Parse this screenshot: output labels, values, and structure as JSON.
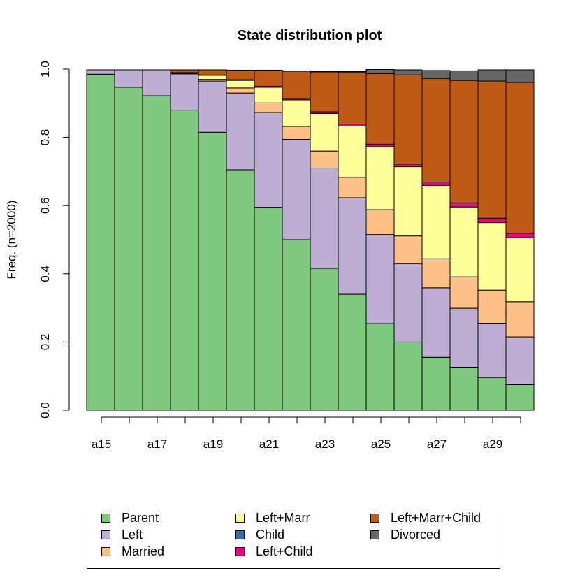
{
  "chart_data": {
    "type": "bar",
    "stacked": true,
    "title": "State distribution plot",
    "xlabel": "",
    "ylabel": "Freq. (n=2000)",
    "ylim": [
      0,
      1
    ],
    "yticks": [
      0.0,
      0.2,
      0.4,
      0.6,
      0.8,
      1.0
    ],
    "ytick_labels": [
      "0.0",
      "0.2",
      "0.4",
      "0.6",
      "0.8",
      "1.0"
    ],
    "categories": [
      "a15",
      "a16",
      "a17",
      "a18",
      "a19",
      "a20",
      "a21",
      "a22",
      "a23",
      "a24",
      "a25",
      "a26",
      "a27",
      "a28",
      "a29",
      "a30"
    ],
    "xtick_labels": [
      "a15",
      "",
      "a17",
      "",
      "a19",
      "",
      "a21",
      "",
      "a23",
      "",
      "a25",
      "",
      "a27",
      "",
      "a29",
      ""
    ],
    "legend_position": "bottom",
    "legend_columns": 3,
    "series": [
      {
        "name": "Parent",
        "color": "#7fc97f",
        "values": [
          0.985,
          0.947,
          0.922,
          0.88,
          0.815,
          0.705,
          0.595,
          0.5,
          0.416,
          0.34,
          0.254,
          0.2,
          0.155,
          0.126,
          0.096,
          0.075
        ]
      },
      {
        "name": "Left",
        "color": "#beaed4",
        "values": [
          0.013,
          0.051,
          0.076,
          0.106,
          0.15,
          0.225,
          0.278,
          0.294,
          0.294,
          0.283,
          0.261,
          0.23,
          0.204,
          0.173,
          0.159,
          0.14
        ]
      },
      {
        "name": "Married",
        "color": "#fdc086",
        "values": [
          0.0,
          0.0,
          0.0,
          0.0,
          0.005,
          0.015,
          0.028,
          0.038,
          0.05,
          0.06,
          0.073,
          0.081,
          0.085,
          0.092,
          0.097,
          0.103
        ]
      },
      {
        "name": "Left+Marr",
        "color": "#ffff99",
        "values": [
          0.0,
          0.0,
          0.0,
          0.002,
          0.012,
          0.022,
          0.046,
          0.078,
          0.11,
          0.15,
          0.185,
          0.203,
          0.215,
          0.205,
          0.198,
          0.188
        ]
      },
      {
        "name": "Child",
        "color": "#386cb0",
        "values": [
          0.0,
          0.0,
          0.0,
          0.0,
          0.0,
          0.0,
          0.0,
          0.0,
          0.0,
          0.0,
          0.0,
          0.0,
          0.0,
          0.0,
          0.0,
          0.0
        ]
      },
      {
        "name": "Left+Child",
        "color": "#f0027f",
        "values": [
          0.0,
          0.0,
          0.0,
          0.002,
          0.001,
          0.002,
          0.003,
          0.004,
          0.005,
          0.006,
          0.007,
          0.008,
          0.01,
          0.012,
          0.013,
          0.013
        ]
      },
      {
        "name": "Left+Marr+Child",
        "color": "#bf5b17",
        "values": [
          0.0,
          0.0,
          0.0,
          0.008,
          0.015,
          0.028,
          0.047,
          0.08,
          0.117,
          0.151,
          0.207,
          0.261,
          0.304,
          0.359,
          0.402,
          0.442
        ]
      },
      {
        "name": "Divorced",
        "color": "#666666",
        "values": [
          0.0,
          0.0,
          0.0,
          0.0,
          0.0,
          0.0,
          0.0,
          0.001,
          0.001,
          0.003,
          0.012,
          0.015,
          0.023,
          0.028,
          0.033,
          0.037
        ]
      }
    ]
  }
}
